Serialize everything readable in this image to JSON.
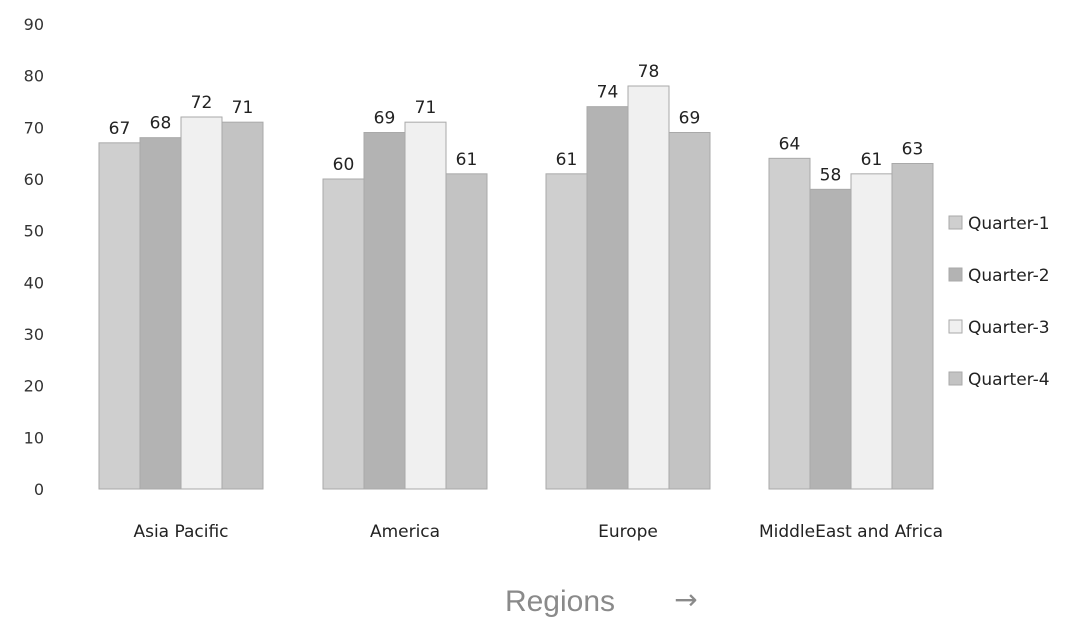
{
  "chart_data": {
    "type": "bar",
    "categories": [
      "Asia Pacific",
      "America",
      "Europe",
      "MiddleEast and Africa"
    ],
    "series": [
      {
        "name": "Quarter-1",
        "values": [
          67,
          60,
          61,
          64
        ],
        "color": "#cfcfcf"
      },
      {
        "name": "Quarter-2",
        "values": [
          68,
          69,
          74,
          58
        ],
        "color": "#b3b3b3"
      },
      {
        "name": "Quarter-3",
        "values": [
          72,
          71,
          78,
          61
        ],
        "color": "#f0f0f0"
      },
      {
        "name": "Quarter-4",
        "values": [
          71,
          61,
          69,
          63
        ],
        "color": "#c3c3c3"
      }
    ],
    "yticks": [
      "0",
      "10",
      "20",
      "30",
      "40",
      "50",
      "60",
      "70",
      "80",
      "90"
    ],
    "ylim": [
      0,
      90
    ],
    "xlabel": "Regions",
    "xlabel_arrow": "→",
    "grid": false,
    "legend_position": "right",
    "data_labels": true
  }
}
